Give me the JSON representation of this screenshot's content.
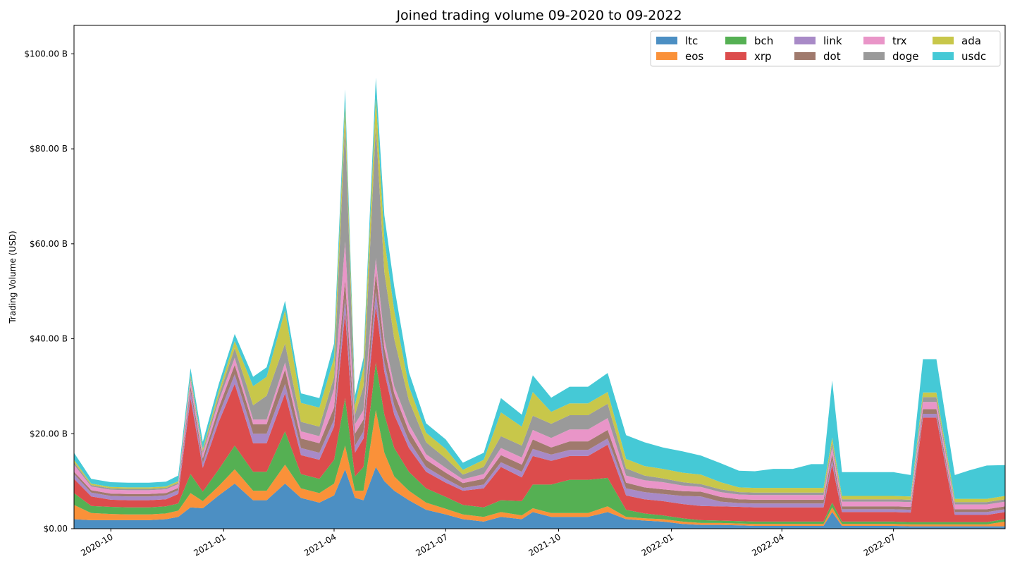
{
  "chart_data": {
    "type": "area",
    "stacked": true,
    "title": "Joined trading volume 09-2020 to 09-2022",
    "xlabel": "",
    "ylabel": "Trading Volume (USD)",
    "x_range": [
      "2020-09-01",
      "2022-09-30"
    ],
    "ylim": [
      0,
      106
    ],
    "y_unit": "billions USD",
    "y_ticks": [
      {
        "value": 0,
        "label": "$0.00"
      },
      {
        "value": 20,
        "label": "$20.00 B"
      },
      {
        "value": 40,
        "label": "$40.00 B"
      },
      {
        "value": 60,
        "label": "$60.00 B"
      },
      {
        "value": 80,
        "label": "$80.00 B"
      },
      {
        "value": 100,
        "label": "$100.00 B"
      }
    ],
    "x_ticks": [
      {
        "value": "2020-10-01",
        "label": "2020-10"
      },
      {
        "value": "2021-01-01",
        "label": "2021-01"
      },
      {
        "value": "2021-04-01",
        "label": "2021-04"
      },
      {
        "value": "2021-07-01",
        "label": "2021-07"
      },
      {
        "value": "2021-10-01",
        "label": "2021-10"
      },
      {
        "value": "2022-01-01",
        "label": "2022-01"
      },
      {
        "value": "2022-04-01",
        "label": "2022-04"
      },
      {
        "value": "2022-07-01",
        "label": "2022-07"
      }
    ],
    "grid": false,
    "legend_position": "top-right",
    "legend_columns": 5,
    "x": [
      "2020-09-01",
      "2020-09-15",
      "2020-10-01",
      "2020-10-15",
      "2020-11-01",
      "2020-11-15",
      "2020-11-25",
      "2020-12-05",
      "2020-12-15",
      "2020-12-28",
      "2021-01-10",
      "2021-01-25",
      "2021-02-05",
      "2021-02-20",
      "2021-03-05",
      "2021-03-20",
      "2021-04-01",
      "2021-04-10",
      "2021-04-18",
      "2021-04-25",
      "2021-05-05",
      "2021-05-12",
      "2021-05-20",
      "2021-06-01",
      "2021-06-15",
      "2021-07-01",
      "2021-07-15",
      "2021-08-01",
      "2021-08-15",
      "2021-09-01",
      "2021-09-10",
      "2021-09-25",
      "2021-10-10",
      "2021-10-25",
      "2021-11-10",
      "2021-11-25",
      "2021-12-10",
      "2021-12-25",
      "2022-01-10",
      "2022-01-25",
      "2022-02-10",
      "2022-02-25",
      "2022-03-10",
      "2022-03-25",
      "2022-04-10",
      "2022-04-25",
      "2022-05-05",
      "2022-05-12",
      "2022-05-20",
      "2022-06-01",
      "2022-06-15",
      "2022-07-01",
      "2022-07-15",
      "2022-07-25",
      "2022-08-05",
      "2022-08-20",
      "2022-09-01",
      "2022-09-15",
      "2022-09-30"
    ],
    "series": [
      {
        "name": "ltc",
        "color": "#4c8fc3",
        "values": [
          2,
          1.8,
          1.8,
          1.8,
          1.8,
          2,
          2.5,
          4.5,
          4.3,
          7,
          9.5,
          6,
          6,
          9.5,
          6.5,
          5.5,
          7,
          12.5,
          6.5,
          6,
          13,
          10,
          8,
          6,
          4,
          3,
          2,
          1.5,
          2.5,
          2,
          3.5,
          2.5,
          2.5,
          2.5,
          3.5,
          2,
          1.7,
          1.5,
          1,
          0.8,
          0.8,
          0.7,
          0.6,
          0.6,
          0.6,
          0.6,
          0.6,
          3.5,
          0.6,
          0.6,
          0.6,
          0.6,
          0.5,
          0.5,
          0.5,
          0.5,
          0.5,
          0.5,
          0.5
        ]
      },
      {
        "name": "eos",
        "color": "#fa9139",
        "values": [
          3,
          1.5,
          1.3,
          1.2,
          1.2,
          1.2,
          1.3,
          3,
          1.5,
          2,
          3,
          2,
          2,
          4,
          2,
          2,
          2.5,
          5,
          1.5,
          2,
          12,
          6,
          3,
          2,
          1.5,
          1.2,
          1,
          1,
          1,
          0.8,
          0.8,
          0.8,
          0.8,
          0.8,
          1.2,
          0.5,
          0.5,
          0.5,
          0.5,
          0.4,
          0.4,
          0.4,
          0.4,
          0.4,
          0.4,
          0.4,
          0.4,
          1,
          0.4,
          0.4,
          0.4,
          0.4,
          0.4,
          0.4,
          0.4,
          0.4,
          0.4,
          0.4,
          1
        ]
      },
      {
        "name": "bch",
        "color": "#55b053",
        "values": [
          2.5,
          1.5,
          1.5,
          1.5,
          1.5,
          1.5,
          1.5,
          4,
          2,
          3.5,
          5,
          4,
          4,
          7,
          3,
          3,
          5,
          10,
          3,
          5,
          10,
          8,
          6,
          4,
          3,
          2.5,
          2,
          2,
          2.5,
          3,
          5,
          6,
          7,
          7,
          6,
          1.5,
          1,
          0.8,
          0.7,
          0.6,
          0.5,
          0.5,
          0.5,
          0.5,
          0.5,
          0.5,
          0.5,
          1,
          0.5,
          0.5,
          0.5,
          0.5,
          0.5,
          0.5,
          0.5,
          0.5,
          0.5,
          0.5,
          0.5
        ]
      },
      {
        "name": "xrp",
        "color": "#dc4c4c",
        "values": [
          3,
          2,
          1.5,
          1.5,
          1.5,
          1.5,
          2,
          16,
          5,
          10,
          13,
          6,
          6,
          8,
          4,
          4,
          7,
          18,
          5,
          6,
          12,
          9,
          7,
          5,
          3.5,
          3,
          3,
          4,
          7,
          5,
          6,
          5,
          5,
          5,
          7,
          3,
          3,
          3,
          3,
          3,
          3,
          3,
          3,
          3,
          3,
          3,
          3,
          8,
          2,
          2,
          2,
          2,
          2,
          22,
          22,
          1.5,
          1.5,
          1.5,
          1.5
        ]
      },
      {
        "name": "link",
        "color": "#a88ac7",
        "values": [
          1,
          0.8,
          0.8,
          0.8,
          0.8,
          0.8,
          0.8,
          1.5,
          1,
          1.5,
          2,
          2,
          2,
          2,
          1.5,
          1.5,
          1.5,
          3,
          1.5,
          1.5,
          3,
          2,
          2,
          1.5,
          1,
          0.8,
          0.6,
          0.8,
          1,
          1.2,
          1.5,
          1.3,
          1.3,
          1.3,
          1.3,
          1.5,
          1.5,
          1.5,
          1.7,
          2,
          1,
          0.8,
          0.8,
          0.8,
          0.8,
          0.8,
          0.8,
          1,
          0.6,
          0.6,
          0.6,
          0.6,
          0.6,
          0.8,
          0.8,
          0.6,
          0.6,
          0.6,
          0.6
        ]
      },
      {
        "name": "dot",
        "color": "#a07a6d",
        "values": [
          0.5,
          0.5,
          0.5,
          0.5,
          0.5,
          0.5,
          0.5,
          1,
          1,
          1.5,
          2,
          2,
          2,
          3,
          2,
          2,
          2.5,
          4,
          2.5,
          2.5,
          4,
          3,
          2.5,
          2,
          1.5,
          1.3,
          1,
          1.2,
          1.5,
          1.5,
          2,
          1.5,
          1.8,
          1.8,
          1.8,
          1.2,
          1,
          1,
          1,
          1,
          1,
          0.8,
          0.8,
          0.8,
          0.8,
          0.8,
          0.8,
          1.2,
          0.6,
          0.6,
          0.6,
          0.6,
          0.6,
          1,
          1,
          0.6,
          0.6,
          0.6,
          0.6
        ]
      },
      {
        "name": "trx",
        "color": "#e995c8",
        "values": [
          1.5,
          0.8,
          0.8,
          0.8,
          0.8,
          0.8,
          0.8,
          1.3,
          1,
          1.5,
          1.5,
          1,
          1,
          1.5,
          1.5,
          1.5,
          4,
          8,
          2,
          2,
          3,
          2,
          1.5,
          1.5,
          1.2,
          1,
          0.8,
          1,
          1.5,
          1.5,
          2,
          2,
          2.5,
          2.5,
          2.5,
          1.5,
          1.5,
          1.5,
          1.2,
          1,
          1,
          1,
          1,
          1,
          1,
          1,
          1,
          1.5,
          1,
          1,
          1,
          1,
          1,
          1.5,
          1.5,
          1,
          1,
          1,
          1
        ]
      },
      {
        "name": "doge",
        "color": "#9a9a9a",
        "values": [
          0.5,
          0.3,
          0.3,
          0.3,
          0.3,
          0.3,
          0.3,
          0.5,
          0.5,
          1,
          2,
          3,
          5,
          4,
          2,
          2,
          2.5,
          25,
          2,
          5,
          28,
          14,
          10,
          5,
          2.5,
          2,
          1,
          1.5,
          2.5,
          2.5,
          3,
          3,
          3,
          3,
          3,
          1.5,
          1,
          0.8,
          0.7,
          0.6,
          0.6,
          0.5,
          0.5,
          0.5,
          0.5,
          0.5,
          0.5,
          1,
          0.5,
          0.5,
          0.5,
          0.5,
          0.5,
          1,
          1,
          0.5,
          0.5,
          0.5,
          0.5
        ]
      },
      {
        "name": "ada",
        "color": "#c8c74a",
        "values": [
          0.5,
          0.3,
          0.3,
          0.3,
          0.3,
          0.3,
          0.3,
          0.5,
          0.5,
          1,
          1.5,
          4,
          4,
          7,
          4,
          4,
          4,
          4,
          2,
          4,
          6,
          7,
          6,
          3,
          2,
          2,
          1,
          1.5,
          5,
          4,
          5,
          2.5,
          2.5,
          2.5,
          2.5,
          2,
          2,
          2,
          2,
          2,
          1.5,
          1,
          1,
          1,
          1,
          1,
          1,
          1,
          0.7,
          0.7,
          0.7,
          0.7,
          0.7,
          1,
          1,
          0.7,
          0.7,
          0.7,
          0.7
        ]
      },
      {
        "name": "usdc",
        "color": "#45c9d6",
        "values": [
          1.5,
          1,
          1,
          1,
          1,
          1,
          1.2,
          1.5,
          1.5,
          1.5,
          1.5,
          2,
          2,
          2,
          2,
          2,
          3,
          3,
          2,
          2,
          4,
          5,
          5,
          3,
          2,
          2,
          1.5,
          1.5,
          3,
          2.5,
          3.5,
          3,
          3.5,
          3.5,
          4,
          5,
          5,
          4.5,
          4.5,
          4,
          4,
          3.5,
          3.5,
          4,
          4,
          5,
          5,
          12,
          5,
          5,
          5,
          5,
          4.5,
          7,
          7,
          5,
          6,
          7,
          6.5
        ]
      }
    ]
  }
}
